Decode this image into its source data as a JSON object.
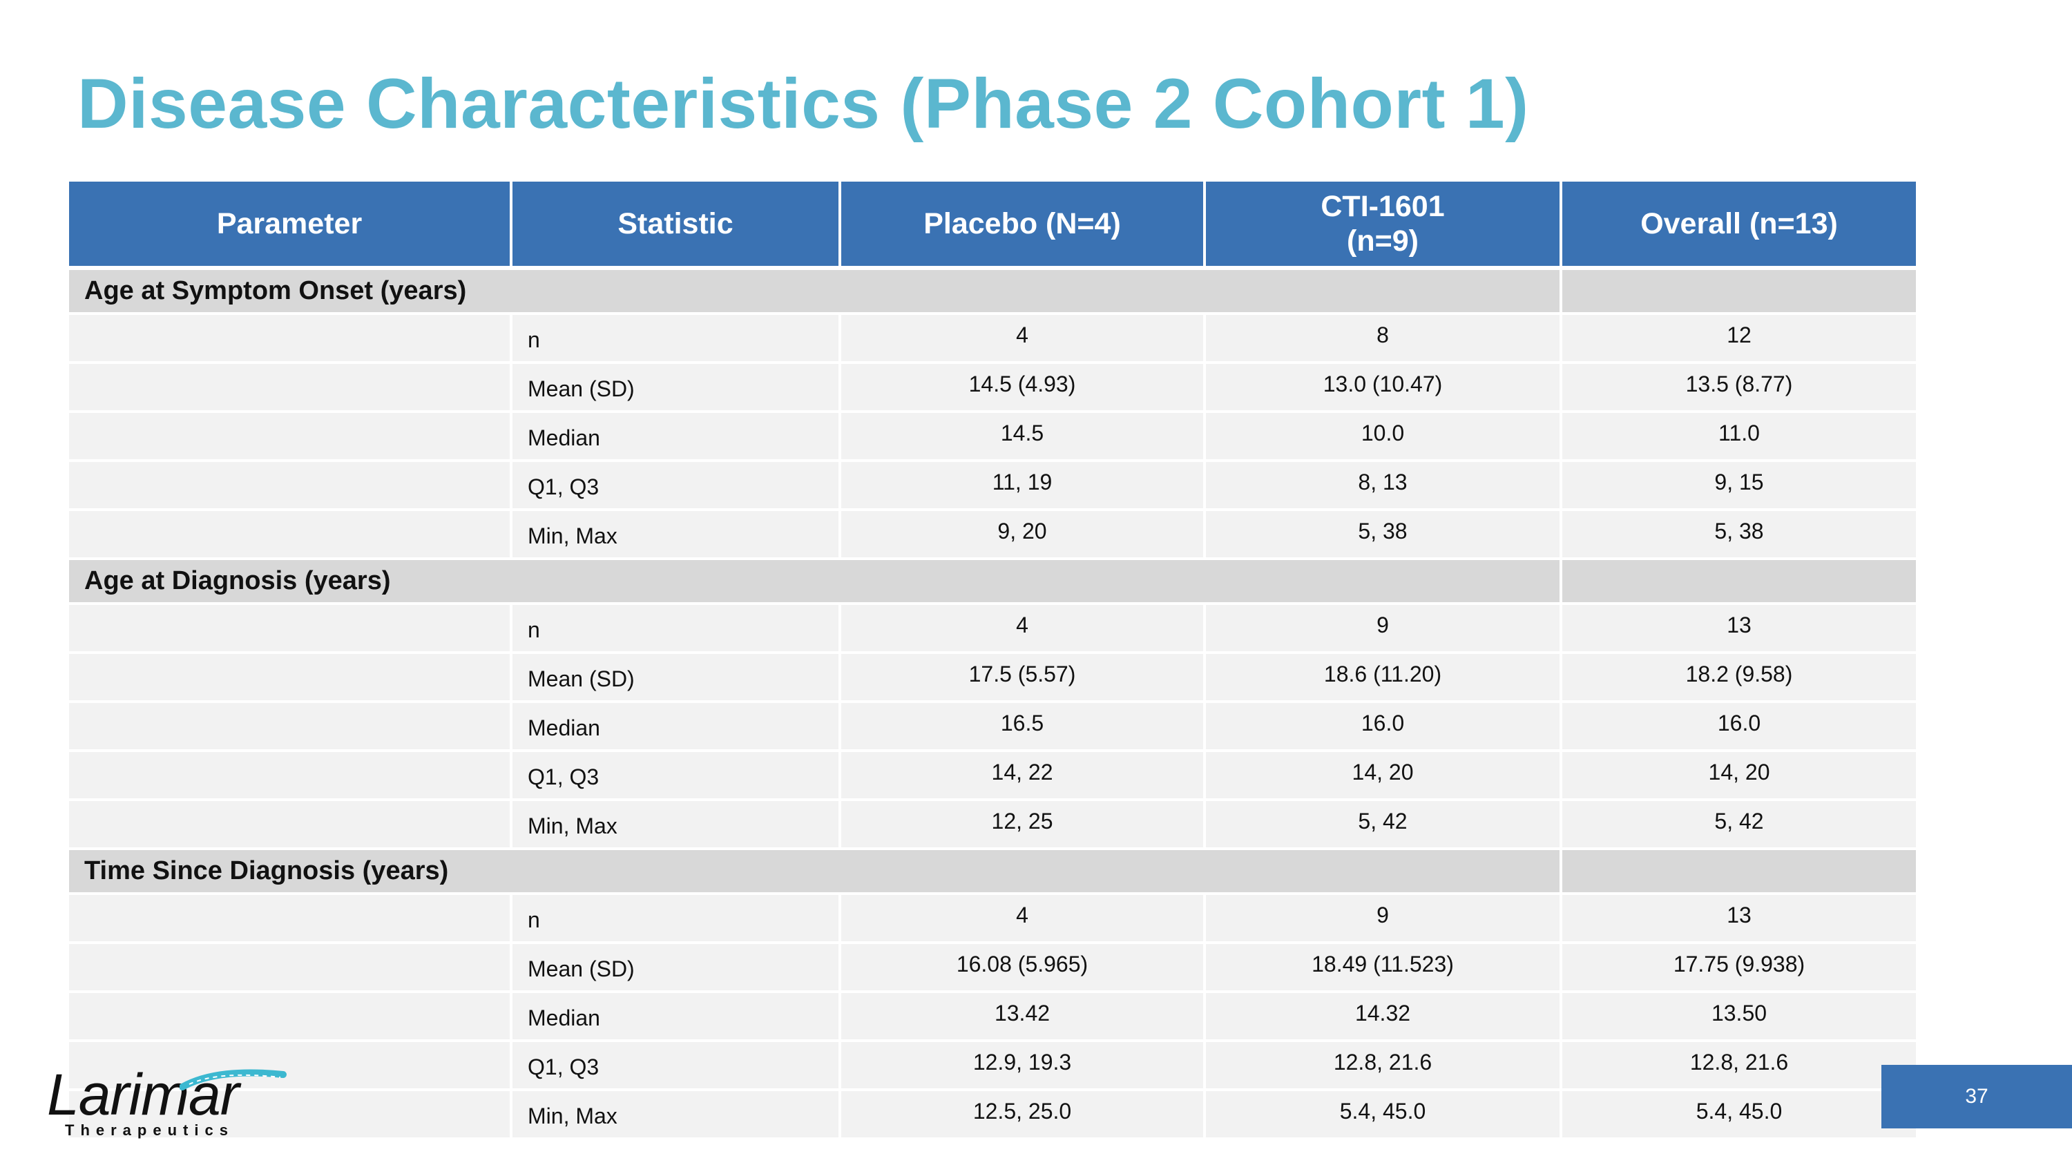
{
  "title": "Disease Characteristics (Phase 2 Cohort 1)",
  "table": {
    "headers": [
      "Parameter",
      "Statistic",
      "Placebo (N=4)",
      "CTI-1601",
      "(n=9)",
      "Overall (n=13)"
    ],
    "sections": [
      {
        "label": "Age at Symptom Onset (years)",
        "rows": [
          {
            "stat": "n",
            "placebo": "4",
            "cti": "8",
            "overall": "12"
          },
          {
            "stat": "Mean (SD)",
            "placebo": "14.5 (4.93)",
            "cti": "13.0 (10.47)",
            "overall": "13.5 (8.77)"
          },
          {
            "stat": "Median",
            "placebo": "14.5",
            "cti": "10.0",
            "overall": "11.0"
          },
          {
            "stat": "Q1, Q3",
            "placebo": "11, 19",
            "cti": "8, 13",
            "overall": "9, 15"
          },
          {
            "stat": "Min, Max",
            "placebo": "9, 20",
            "cti": "5, 38",
            "overall": "5, 38"
          }
        ]
      },
      {
        "label": "Age at Diagnosis (years)",
        "rows": [
          {
            "stat": "n",
            "placebo": "4",
            "cti": "9",
            "overall": "13"
          },
          {
            "stat": "Mean (SD)",
            "placebo": "17.5 (5.57)",
            "cti": "18.6 (11.20)",
            "overall": "18.2 (9.58)"
          },
          {
            "stat": "Median",
            "placebo": "16.5",
            "cti": "16.0",
            "overall": "16.0"
          },
          {
            "stat": "Q1, Q3",
            "placebo": "14, 22",
            "cti": "14, 20",
            "overall": "14, 20"
          },
          {
            "stat": "Min, Max",
            "placebo": "12, 25",
            "cti": "5, 42",
            "overall": "5, 42"
          }
        ]
      },
      {
        "label": "Time Since Diagnosis (years)",
        "rows": [
          {
            "stat": "n",
            "placebo": "4",
            "cti": "9",
            "overall": "13"
          },
          {
            "stat": "Mean (SD)",
            "placebo": "16.08 (5.965)",
            "cti": "18.49 (11.523)",
            "overall": "17.75 (9.938)"
          },
          {
            "stat": "Median",
            "placebo": "13.42",
            "cti": "14.32",
            "overall": "13.50"
          },
          {
            "stat": "Q1, Q3",
            "placebo": "12.9, 19.3",
            "cti": "12.8, 21.6",
            "overall": "12.8, 21.6"
          },
          {
            "stat": "Min, Max",
            "placebo": "12.5, 25.0",
            "cti": "5.4, 45.0",
            "overall": "5.4, 45.0"
          }
        ]
      }
    ]
  },
  "logo": {
    "name": "Larimar",
    "subtitle": "Therapeutics"
  },
  "page_number": "37",
  "colors": {
    "title": "#5bb7cf",
    "header_bg": "#3a72b3",
    "section_bg": "#d8d8d8",
    "row_bg": "#f2f2f2",
    "logo_accent": "#3cb8d0"
  }
}
